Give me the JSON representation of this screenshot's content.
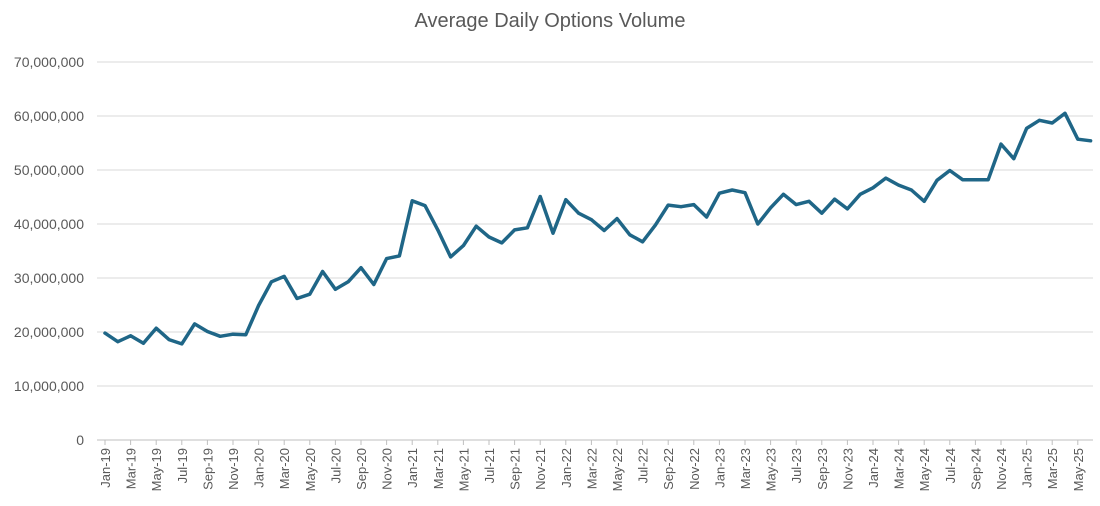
{
  "chart_data": {
    "type": "line",
    "title": "Average Daily Options Volume",
    "xlabel": "",
    "ylabel": "",
    "ylim": [
      0,
      70000000
    ],
    "yticks": [
      "0",
      "10,000,000",
      "20,000,000",
      "30,000,000",
      "40,000,000",
      "50,000,000",
      "60,000,000",
      "70,000,000"
    ],
    "grid": true,
    "line_color": "#1f6687",
    "categories": [
      "Jan-19",
      "Feb-19",
      "Mar-19",
      "Apr-19",
      "May-19",
      "Jun-19",
      "Jul-19",
      "Aug-19",
      "Sep-19",
      "Oct-19",
      "Nov-19",
      "Dec-19",
      "Jan-20",
      "Feb-20",
      "Mar-20",
      "Apr-20",
      "May-20",
      "Jun-20",
      "Jul-20",
      "Aug-20",
      "Sep-20",
      "Oct-20",
      "Nov-20",
      "Dec-20",
      "Jan-21",
      "Feb-21",
      "Mar-21",
      "Apr-21",
      "May-21",
      "Jun-21",
      "Jul-21",
      "Aug-21",
      "Sep-21",
      "Oct-21",
      "Nov-21",
      "Dec-21",
      "Jan-22",
      "Feb-22",
      "Mar-22",
      "Apr-22",
      "May-22",
      "Jun-22",
      "Jul-22",
      "Aug-22",
      "Sep-22",
      "Oct-22",
      "Nov-22",
      "Dec-22",
      "Jan-23",
      "Feb-23",
      "Mar-23",
      "Apr-23",
      "May-23",
      "Jun-23",
      "Jul-23",
      "Aug-23",
      "Sep-23",
      "Oct-23",
      "Nov-23",
      "Dec-23",
      "Jan-24",
      "Feb-24",
      "Mar-24",
      "Apr-24",
      "May-24",
      "Jun-24",
      "Jul-24",
      "Aug-24",
      "Sep-24",
      "Oct-24",
      "Nov-24",
      "Dec-24",
      "Jan-25",
      "Feb-25",
      "Mar-25",
      "Apr-25",
      "May-25",
      "Jun-25"
    ],
    "tick_labels": [
      "Jan-19",
      "Mar-19",
      "May-19",
      "Jul-19",
      "Sep-19",
      "Nov-19",
      "Jan-20",
      "Mar-20",
      "May-20",
      "Jul-20",
      "Sep-20",
      "Nov-20",
      "Jan-21",
      "Mar-21",
      "May-21",
      "Jul-21",
      "Sep-21",
      "Nov-21",
      "Jan-22",
      "Mar-22",
      "May-22",
      "Jul-22",
      "Sep-22",
      "Nov-22",
      "Jan-23",
      "Mar-23",
      "May-23",
      "Jul-23",
      "Sep-23",
      "Nov-23",
      "Jan-24",
      "Mar-24",
      "May-24",
      "Jul-24",
      "Sep-24",
      "Nov-24",
      "Jan-25",
      "Mar-25",
      "May-25"
    ],
    "series": [
      {
        "values": [
          19800000,
          18200000,
          19300000,
          17900000,
          20700000,
          18600000,
          17800000,
          21500000,
          20100000,
          19200000,
          19600000,
          19500000,
          24900000,
          29300000,
          30300000,
          26200000,
          27000000,
          31200000,
          27900000,
          29300000,
          31900000,
          28800000,
          33600000,
          34100000,
          44300000,
          43400000,
          38900000,
          33900000,
          36000000,
          39600000,
          37600000,
          36500000,
          38900000,
          39300000,
          45100000,
          38300000,
          44500000,
          42000000,
          40800000,
          38800000,
          41000000,
          38000000,
          36700000,
          39800000,
          43500000,
          43200000,
          43600000,
          41300000,
          45700000,
          46300000,
          45800000,
          40000000,
          43000000,
          45500000,
          43600000,
          44200000,
          42000000,
          44600000,
          42800000,
          45500000,
          46700000,
          48500000,
          47200000,
          46300000,
          44200000,
          48100000,
          49900000,
          48200000,
          48200000,
          48200000,
          54800000,
          52100000,
          57700000,
          59200000,
          58700000,
          60500000,
          55700000,
          55400000
        ]
      }
    ]
  }
}
